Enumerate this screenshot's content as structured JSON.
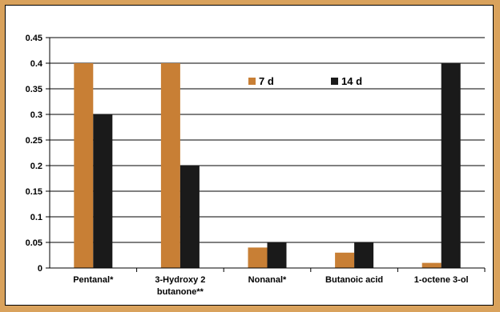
{
  "chart_data": {
    "type": "bar",
    "categories": [
      [
        "Pentanal*"
      ],
      [
        "3-Hydroxy 2",
        "butanone**"
      ],
      [
        "Nonanal*"
      ],
      [
        "Butanoic acid"
      ],
      [
        "1-octene 3-ol"
      ]
    ],
    "series": [
      {
        "name": "7 d",
        "color": "#c87f35",
        "values": [
          0.4,
          0.4,
          0.04,
          0.03,
          0.01
        ]
      },
      {
        "name": "14 d",
        "color": "#1a1a1a",
        "values": [
          0.3,
          0.2,
          0.05,
          0.05,
          0.4
        ]
      }
    ],
    "yticks": [
      "0",
      "0.05",
      "0.1",
      "0.15",
      "0.2",
      "0.25",
      "0.3",
      "0.35",
      "0.4",
      "0.45"
    ],
    "ylim": [
      0,
      0.45
    ],
    "grid": true,
    "legend": "top-center",
    "title": "",
    "xlabel": "",
    "ylabel": ""
  },
  "colors": {
    "border": "#d9a25c",
    "plot_background": "#ffffff",
    "gridline": "#000000"
  }
}
